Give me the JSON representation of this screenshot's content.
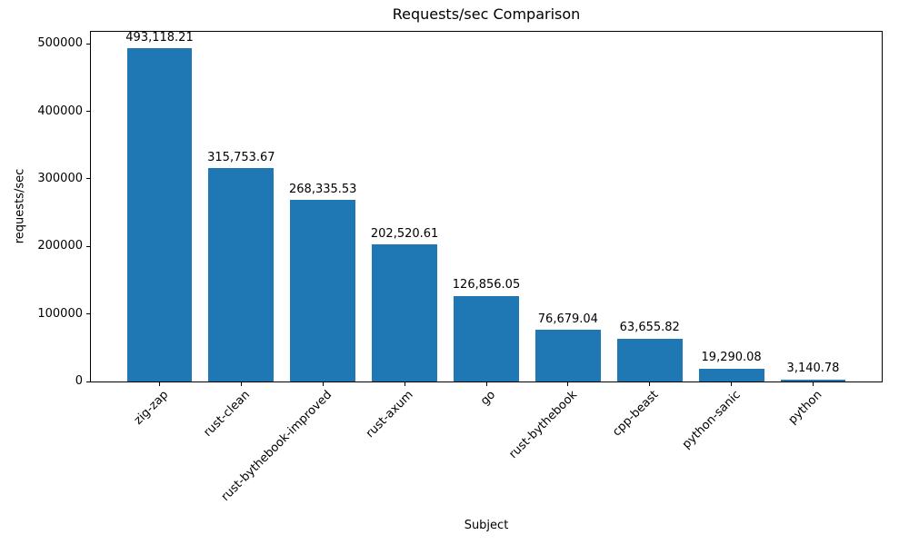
{
  "chart_data": {
    "type": "bar",
    "title": "Requests/sec Comparison",
    "xlabel": "Subject",
    "ylabel": "requests/sec",
    "categories": [
      "zig-zap",
      "rust-clean",
      "rust-bythebook-improved",
      "rust-axum",
      "go",
      "rust-bythebook",
      "cpp-beast",
      "python-sanic",
      "python"
    ],
    "values": [
      493118.21,
      315753.67,
      268335.53,
      202520.61,
      126856.05,
      76679.04,
      63655.82,
      19290.08,
      3140.78
    ],
    "value_labels": [
      "493,118.21",
      "315,753.67",
      "268,335.53",
      "202,520.61",
      "126,856.05",
      "76,679.04",
      "63,655.82",
      "19,290.08",
      "3,140.78"
    ],
    "yticks": [
      0,
      100000,
      200000,
      300000,
      400000,
      500000
    ],
    "ylim": [
      0,
      517774
    ],
    "bar_color": "#1f77b4",
    "bar_width_frac": 0.8,
    "grid": false,
    "legend_position": "none"
  }
}
